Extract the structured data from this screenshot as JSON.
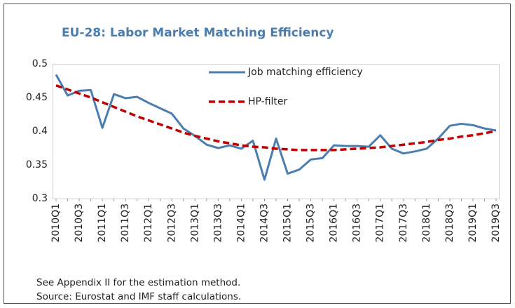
{
  "chart_data": {
    "type": "line",
    "title": "EU-28: Labor Market Matching Efficiency",
    "categories": [
      "2010Q1",
      null,
      "2010Q3",
      null,
      "2011Q1",
      null,
      "2011Q3",
      null,
      "2012Q1",
      null,
      "2012Q3",
      null,
      "2013Q1",
      null,
      "2013Q3",
      null,
      "2014Q1",
      null,
      "2014Q3",
      null,
      "2015Q1",
      null,
      "2015Q3",
      null,
      "2016Q1",
      null,
      "2016Q3",
      null,
      "2017Q1",
      null,
      "2017Q3",
      null,
      "2018Q1",
      null,
      "2018Q3",
      null,
      "2019Q1",
      null,
      "2019Q3"
    ],
    "series": [
      {
        "name": "Job matching efficiency",
        "color": "#4a7eb0",
        "dashed": false,
        "values": [
          0.484,
          0.453,
          0.46,
          0.461,
          0.405,
          0.455,
          0.449,
          0.451,
          0.442,
          0.434,
          0.426,
          0.404,
          0.393,
          0.38,
          0.375,
          0.379,
          0.374,
          0.386,
          0.328,
          0.389,
          0.337,
          0.343,
          0.358,
          0.36,
          0.379,
          0.378,
          0.378,
          0.377,
          0.394,
          0.374,
          0.367,
          0.37,
          0.374,
          0.389,
          0.408,
          0.411,
          0.409,
          0.404,
          0.401
        ]
      },
      {
        "name": "HP-filter",
        "color": "#c00000",
        "dashed": true,
        "values": [
          0.468,
          0.462,
          0.456,
          0.45,
          0.443,
          0.436,
          0.429,
          0.422,
          0.416,
          0.41,
          0.404,
          0.398,
          0.393,
          0.389,
          0.385,
          0.382,
          0.379,
          0.377,
          0.376,
          0.374,
          0.373,
          0.372,
          0.372,
          0.372,
          0.372,
          0.373,
          0.374,
          0.375,
          0.376,
          0.378,
          0.38,
          0.382,
          0.384,
          0.387,
          0.389,
          0.392,
          0.394,
          0.397,
          0.4
        ]
      }
    ],
    "ylim": [
      0.3,
      0.5
    ],
    "yticks": [
      0.3,
      0.35,
      0.4,
      0.45,
      0.5
    ],
    "grid": false,
    "notes": [
      "See Appendix II for the estimation method.",
      "Source: Eurostat and IMF staff calculations."
    ]
  }
}
